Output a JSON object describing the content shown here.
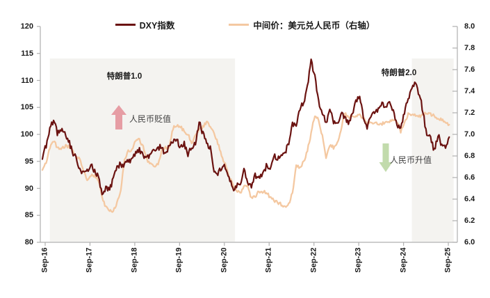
{
  "colors": {
    "dxy_line": "#6B1311",
    "cny_line": "#F4C8A1",
    "axis": "#AFAFAF",
    "era_shade": "#F4F3F0",
    "depreciation_arrow": "#E4939B",
    "appreciation_arrow": "#BBD7A3",
    "text": "#1A1A1A"
  },
  "legend": [
    {
      "label": "DXY指数",
      "color": "#6B1311"
    },
    {
      "label": "中间价：美元兑人民币（右轴）",
      "color": "#F4C8A1"
    }
  ],
  "chart_data": {
    "type": "line",
    "title": "",
    "xlabel": "",
    "ylabel_left": "",
    "ylabel_right": "",
    "grid": false,
    "legend_position": "top-center",
    "x_freq": "monthly",
    "x_start": "2016-09",
    "x_end": "2025-10",
    "x_tick_labels": [
      "Sep-16",
      "Sep-17",
      "Sep-18",
      "Sep-19",
      "Sep-20",
      "Sep-21",
      "Sep-22",
      "Sep-23",
      "Sep-24",
      "Sep-25"
    ],
    "left_axis": {
      "min": 80,
      "max": 120,
      "step": 5,
      "tick_labels": [
        "120",
        "115",
        "110",
        "105",
        "100",
        "95",
        "90",
        "85",
        "80"
      ]
    },
    "right_axis": {
      "min": 6.0,
      "max": 8.0,
      "step": 0.2,
      "tick_labels": [
        "8.0",
        "7.8",
        "7.6",
        "7.4",
        "7.2",
        "7.0",
        "6.8",
        "6.6",
        "6.4",
        "6.2",
        "6.0"
      ]
    },
    "series": [
      {
        "name": "DXY指数",
        "axis": "left",
        "color": "#6B1311",
        "monthly_values": [
          95.4,
          98.0,
          100.9,
          102.8,
          100.2,
          101.1,
          100.1,
          99.0,
          96.9,
          95.6,
          93.3,
          92.7,
          93.1,
          94.5,
          93.2,
          92.1,
          89.1,
          90.2,
          89.8,
          91.8,
          94.0,
          94.5,
          94.2,
          95.1,
          95.1,
          96.9,
          97.0,
          96.2,
          95.6,
          96.5,
          97.2,
          97.5,
          97.7,
          96.1,
          98.0,
          98.9,
          99.1,
          97.3,
          98.3,
          96.4,
          97.8,
          98.1,
          102.5,
          100.1,
          98.3,
          97.4,
          93.5,
          92.8,
          93.9,
          94.0,
          91.8,
          89.9,
          90.6,
          90.9,
          93.2,
          91.3,
          90.0,
          92.4,
          92.2,
          92.6,
          94.2,
          94.1,
          96.0,
          95.7,
          96.5,
          96.7,
          98.3,
          102.0,
          101.8,
          104.7,
          105.9,
          108.8,
          113.5,
          111.0,
          106.0,
          104.0,
          102.0,
          104.5,
          102.5,
          101.7,
          104.2,
          102.9,
          101.9,
          103.6,
          106.2,
          106.7,
          103.5,
          101.3,
          103.3,
          104.2,
          104.5,
          106.2,
          104.7,
          105.9,
          104.1,
          101.7,
          100.8,
          104.0,
          106.5,
          108.4,
          109.7,
          107.3,
          104.2,
          99.5,
          99.3,
          97.0,
          99.9,
          97.8,
          97.7,
          99.5
        ]
      },
      {
        "name": "中间价：美元兑人民币（右轴）",
        "axis": "right",
        "color": "#F4C8A1",
        "monthly_values": [
          6.67,
          6.74,
          6.88,
          6.94,
          6.88,
          6.87,
          6.89,
          6.89,
          6.86,
          6.8,
          6.77,
          6.67,
          6.56,
          6.62,
          6.62,
          6.58,
          6.42,
          6.32,
          6.3,
          6.29,
          6.37,
          6.48,
          6.77,
          6.84,
          6.86,
          6.94,
          6.95,
          6.88,
          6.77,
          6.72,
          6.71,
          6.72,
          6.85,
          6.88,
          6.88,
          7.06,
          7.08,
          7.07,
          7.03,
          7.0,
          6.92,
          7.0,
          7.04,
          7.07,
          7.11,
          7.08,
          7.0,
          6.92,
          6.81,
          6.72,
          6.61,
          6.54,
          6.48,
          6.46,
          6.51,
          6.52,
          6.41,
          6.42,
          6.47,
          6.47,
          6.46,
          6.42,
          6.39,
          6.37,
          6.35,
          6.33,
          6.35,
          6.46,
          6.7,
          6.7,
          6.74,
          6.85,
          7.01,
          7.18,
          7.13,
          6.98,
          6.78,
          6.9,
          6.88,
          6.91,
          7.05,
          7.2,
          7.15,
          7.18,
          7.17,
          7.18,
          7.15,
          7.1,
          7.11,
          7.11,
          7.09,
          7.1,
          7.11,
          7.12,
          7.13,
          7.12,
          7.03,
          7.1,
          7.19,
          7.19,
          7.17,
          7.17,
          7.18,
          7.2,
          7.19,
          7.17,
          7.15,
          7.13,
          7.11,
          7.09
        ]
      }
    ],
    "shaded_regions": [
      {
        "label": "特朗普1.0",
        "start_month": 2.0,
        "end_month": 51.6
      },
      {
        "label": "特朗普2.0",
        "start_month": 99.0,
        "end_month": 110.2
      }
    ],
    "annotations": [
      {
        "text": "人民币贬值",
        "arrow": "up",
        "arrow_color": "#E4939B"
      },
      {
        "text": "人民币升值",
        "arrow": "down",
        "arrow_color": "#BBD7A3"
      }
    ]
  }
}
